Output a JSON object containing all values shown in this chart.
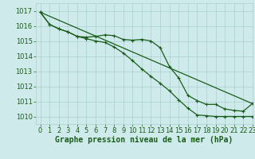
{
  "title": "Graphe pression niveau de la mer (hPa)",
  "bg_color": "#ceeaea",
  "grid_color": "#aacfcf",
  "line_color": "#1a5c1a",
  "xlim": [
    -0.5,
    23
  ],
  "ylim": [
    1009.5,
    1017.5
  ],
  "yticks": [
    1010,
    1011,
    1012,
    1013,
    1014,
    1015,
    1016,
    1017
  ],
  "xticks": [
    0,
    1,
    2,
    3,
    4,
    5,
    6,
    7,
    8,
    9,
    10,
    11,
    12,
    13,
    14,
    15,
    16,
    17,
    18,
    19,
    20,
    21,
    22,
    23
  ],
  "line1_x": [
    0,
    1,
    2,
    3,
    4,
    5,
    6,
    7,
    8,
    9,
    10,
    11,
    12,
    13,
    14,
    15,
    16,
    17,
    18,
    19,
    20,
    21,
    22,
    23
  ],
  "line1_y": [
    1016.9,
    1016.1,
    1015.8,
    1015.6,
    1015.3,
    1015.25,
    1015.3,
    1015.4,
    1015.35,
    1015.1,
    1015.05,
    1015.1,
    1015.0,
    1014.55,
    1013.3,
    1012.55,
    1011.4,
    1011.05,
    1010.8,
    1010.8,
    1010.5,
    1010.4,
    1010.35,
    1010.85
  ],
  "line2_x": [
    0,
    1,
    2,
    3,
    4,
    5,
    6,
    7,
    8,
    9,
    10,
    11,
    12,
    13,
    14,
    15,
    16,
    17,
    18,
    19,
    20,
    21,
    22,
    23
  ],
  "line2_y": [
    1016.9,
    1016.1,
    1015.8,
    1015.6,
    1015.3,
    1015.15,
    1015.0,
    1014.9,
    1014.6,
    1014.2,
    1013.7,
    1013.15,
    1012.65,
    1012.2,
    1011.7,
    1011.1,
    1010.55,
    1010.1,
    1010.05,
    1010.0,
    1010.0,
    1010.0,
    1010.0,
    1010.0
  ],
  "line3_x": [
    0,
    23
  ],
  "line3_y": [
    1016.9,
    1010.85
  ],
  "xlabel_fontsize": 7,
  "tick_fontsize": 6,
  "lw": 0.9,
  "ms": 3.5
}
